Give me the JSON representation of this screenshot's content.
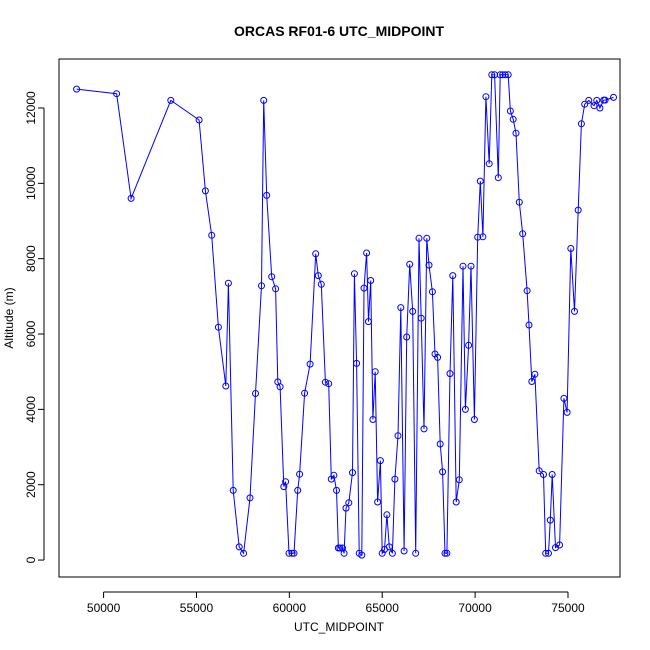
{
  "chart_data": {
    "type": "line",
    "title": "ORCAS RF01-6 UTC_MIDPOINT",
    "xlabel": "UTC_MIDPOINT",
    "ylabel": "Altitude (m)",
    "xlim": [
      47600,
      77800
    ],
    "ylim": [
      -450,
      13300
    ],
    "x_ticks": [
      50000,
      55000,
      60000,
      65000,
      70000,
      75000
    ],
    "x_tick_labels": [
      "50000",
      "55000",
      "60000",
      "65000",
      "70000",
      "75000"
    ],
    "y_ticks": [
      0,
      2000,
      4000,
      6000,
      8000,
      10000,
      12000
    ],
    "y_tick_labels": [
      "0",
      "2000",
      "4000",
      "6000",
      "8000",
      "10000",
      "12000"
    ],
    "grid": false,
    "legend": "none",
    "colors": {
      "series": "#0000ff",
      "axes": "#000000"
    },
    "series": [
      {
        "x": [
          48550,
          50700,
          51480,
          53620,
          55140,
          55480,
          55820,
          56180,
          56580,
          56720,
          56980,
          57300,
          57540,
          57880,
          58180,
          58500,
          58620,
          58780,
          59050,
          59260,
          59380,
          59500,
          59700,
          59800,
          59980,
          60150,
          60250,
          60450,
          60550,
          60820,
          61120,
          61420,
          61560,
          61720,
          61940,
          62120,
          62260,
          62400,
          62540,
          62640,
          62720,
          62860,
          62950,
          63050,
          63200,
          63400,
          63500,
          63620,
          63760,
          63900,
          64020,
          64160,
          64260,
          64380,
          64500,
          64620,
          64750,
          64900,
          65000,
          65120,
          65250,
          65380,
          65550,
          65680,
          65850,
          66000,
          66180,
          66320,
          66480,
          66640,
          66800,
          66980,
          67100,
          67250,
          67400,
          67520,
          67700,
          67840,
          67980,
          68120,
          68250,
          68380,
          68480,
          68650,
          68800,
          68980,
          69150,
          69350,
          69480,
          69650,
          69780,
          69960,
          70140,
          70280,
          70420,
          70580,
          70760,
          70900,
          71050,
          71250,
          71350,
          71480,
          71620,
          71780,
          71900,
          72050,
          72200,
          72380,
          72560,
          72800,
          72900,
          73050,
          73220,
          73450,
          73680,
          73800,
          73950,
          74050,
          74150,
          74330,
          74550,
          74780,
          74950,
          75150,
          75350,
          75550,
          75720,
          75900,
          76120,
          76400,
          76550,
          76720,
          76920,
          77000,
          77450
        ],
        "y": [
          12500,
          12380,
          9600,
          12200,
          11680,
          9800,
          8620,
          6180,
          4620,
          7350,
          1850,
          350,
          180,
          1650,
          4420,
          7280,
          12200,
          9680,
          7520,
          7200,
          4730,
          4600,
          1950,
          2080,
          180,
          180,
          180,
          1850,
          2280,
          4430,
          5200,
          8130,
          7550,
          7320,
          4720,
          4680,
          2150,
          2250,
          1850,
          320,
          320,
          320,
          180,
          1380,
          1520,
          2320,
          7600,
          5220,
          180,
          130,
          7220,
          8150,
          6330,
          7420,
          3730,
          5000,
          1540,
          2640,
          180,
          280,
          1200,
          350,
          180,
          2150,
          3300,
          6700,
          240,
          5920,
          7850,
          6600,
          180,
          8540,
          6420,
          3480,
          8540,
          7830,
          7120,
          5470,
          5380,
          3080,
          2340,
          180,
          180,
          4950,
          7550,
          1540,
          2130,
          7800,
          4000,
          5700,
          7800,
          3730,
          8570,
          10060,
          8580,
          12300,
          10520,
          12880,
          12880,
          10150,
          12880,
          12880,
          12880,
          12880,
          11920,
          11700,
          11330,
          9500,
          8660,
          7150,
          6240,
          4740,
          4930,
          2370,
          2270,
          180,
          180,
          1060,
          2270,
          330,
          400,
          4290,
          3920,
          8270,
          6600,
          9290,
          11580,
          12100,
          12200,
          12060,
          12200,
          12000,
          12210,
          12210,
          12280
        ]
      }
    ]
  }
}
